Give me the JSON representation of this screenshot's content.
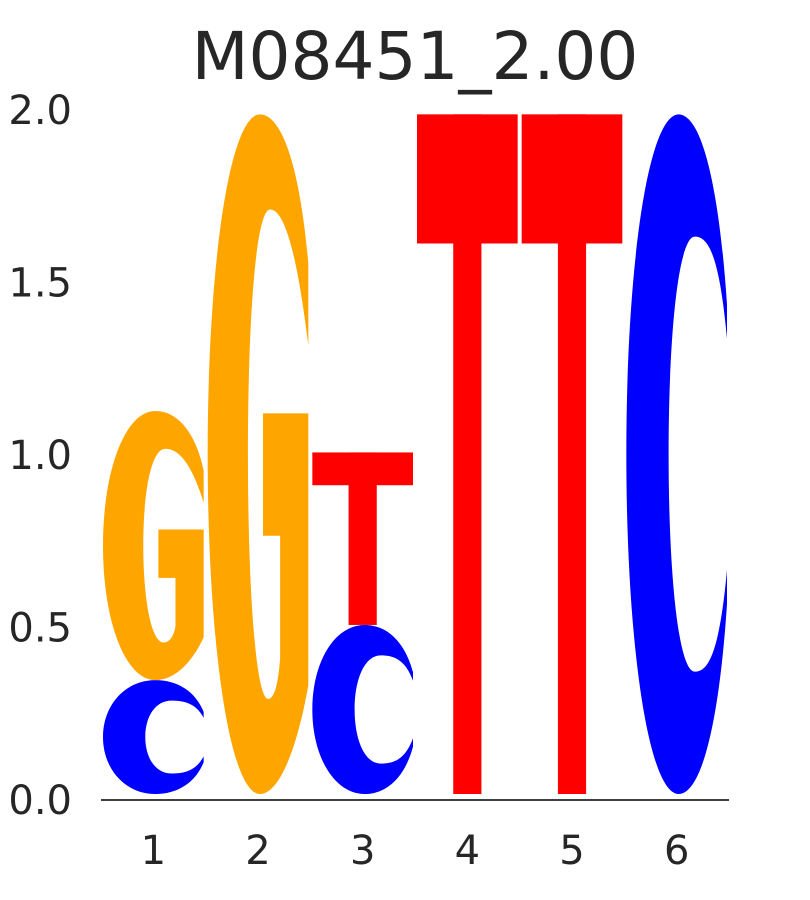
{
  "chart_data": {
    "type": "sequence-logo",
    "title": "M08451_2.00",
    "xlabel": "",
    "ylabel": "",
    "ylim": [
      0,
      2.0
    ],
    "yticks": [
      "0.0",
      "0.5",
      "1.0",
      "1.5",
      "2.0"
    ],
    "xticks": [
      "1",
      "2",
      "3",
      "4",
      "5",
      "6"
    ],
    "grid": false,
    "colors": {
      "A": "#008000",
      "C": "#0000ff",
      "G": "#ffa500",
      "T": "#ff0000"
    },
    "positions": [
      {
        "position": "1",
        "letters": [
          {
            "letter": "C",
            "bits": 0.33
          },
          {
            "letter": "G",
            "bits": 0.78
          }
        ]
      },
      {
        "position": "2",
        "letters": [
          {
            "letter": "G",
            "bits": 1.97
          }
        ]
      },
      {
        "position": "3",
        "letters": [
          {
            "letter": "C",
            "bits": 0.49
          },
          {
            "letter": "T",
            "bits": 0.5
          }
        ]
      },
      {
        "position": "4",
        "letters": [
          {
            "letter": "T",
            "bits": 1.97
          }
        ]
      },
      {
        "position": "5",
        "letters": [
          {
            "letter": "T",
            "bits": 1.97
          }
        ]
      },
      {
        "position": "6",
        "letters": [
          {
            "letter": "C",
            "bits": 1.97
          }
        ]
      }
    ]
  }
}
